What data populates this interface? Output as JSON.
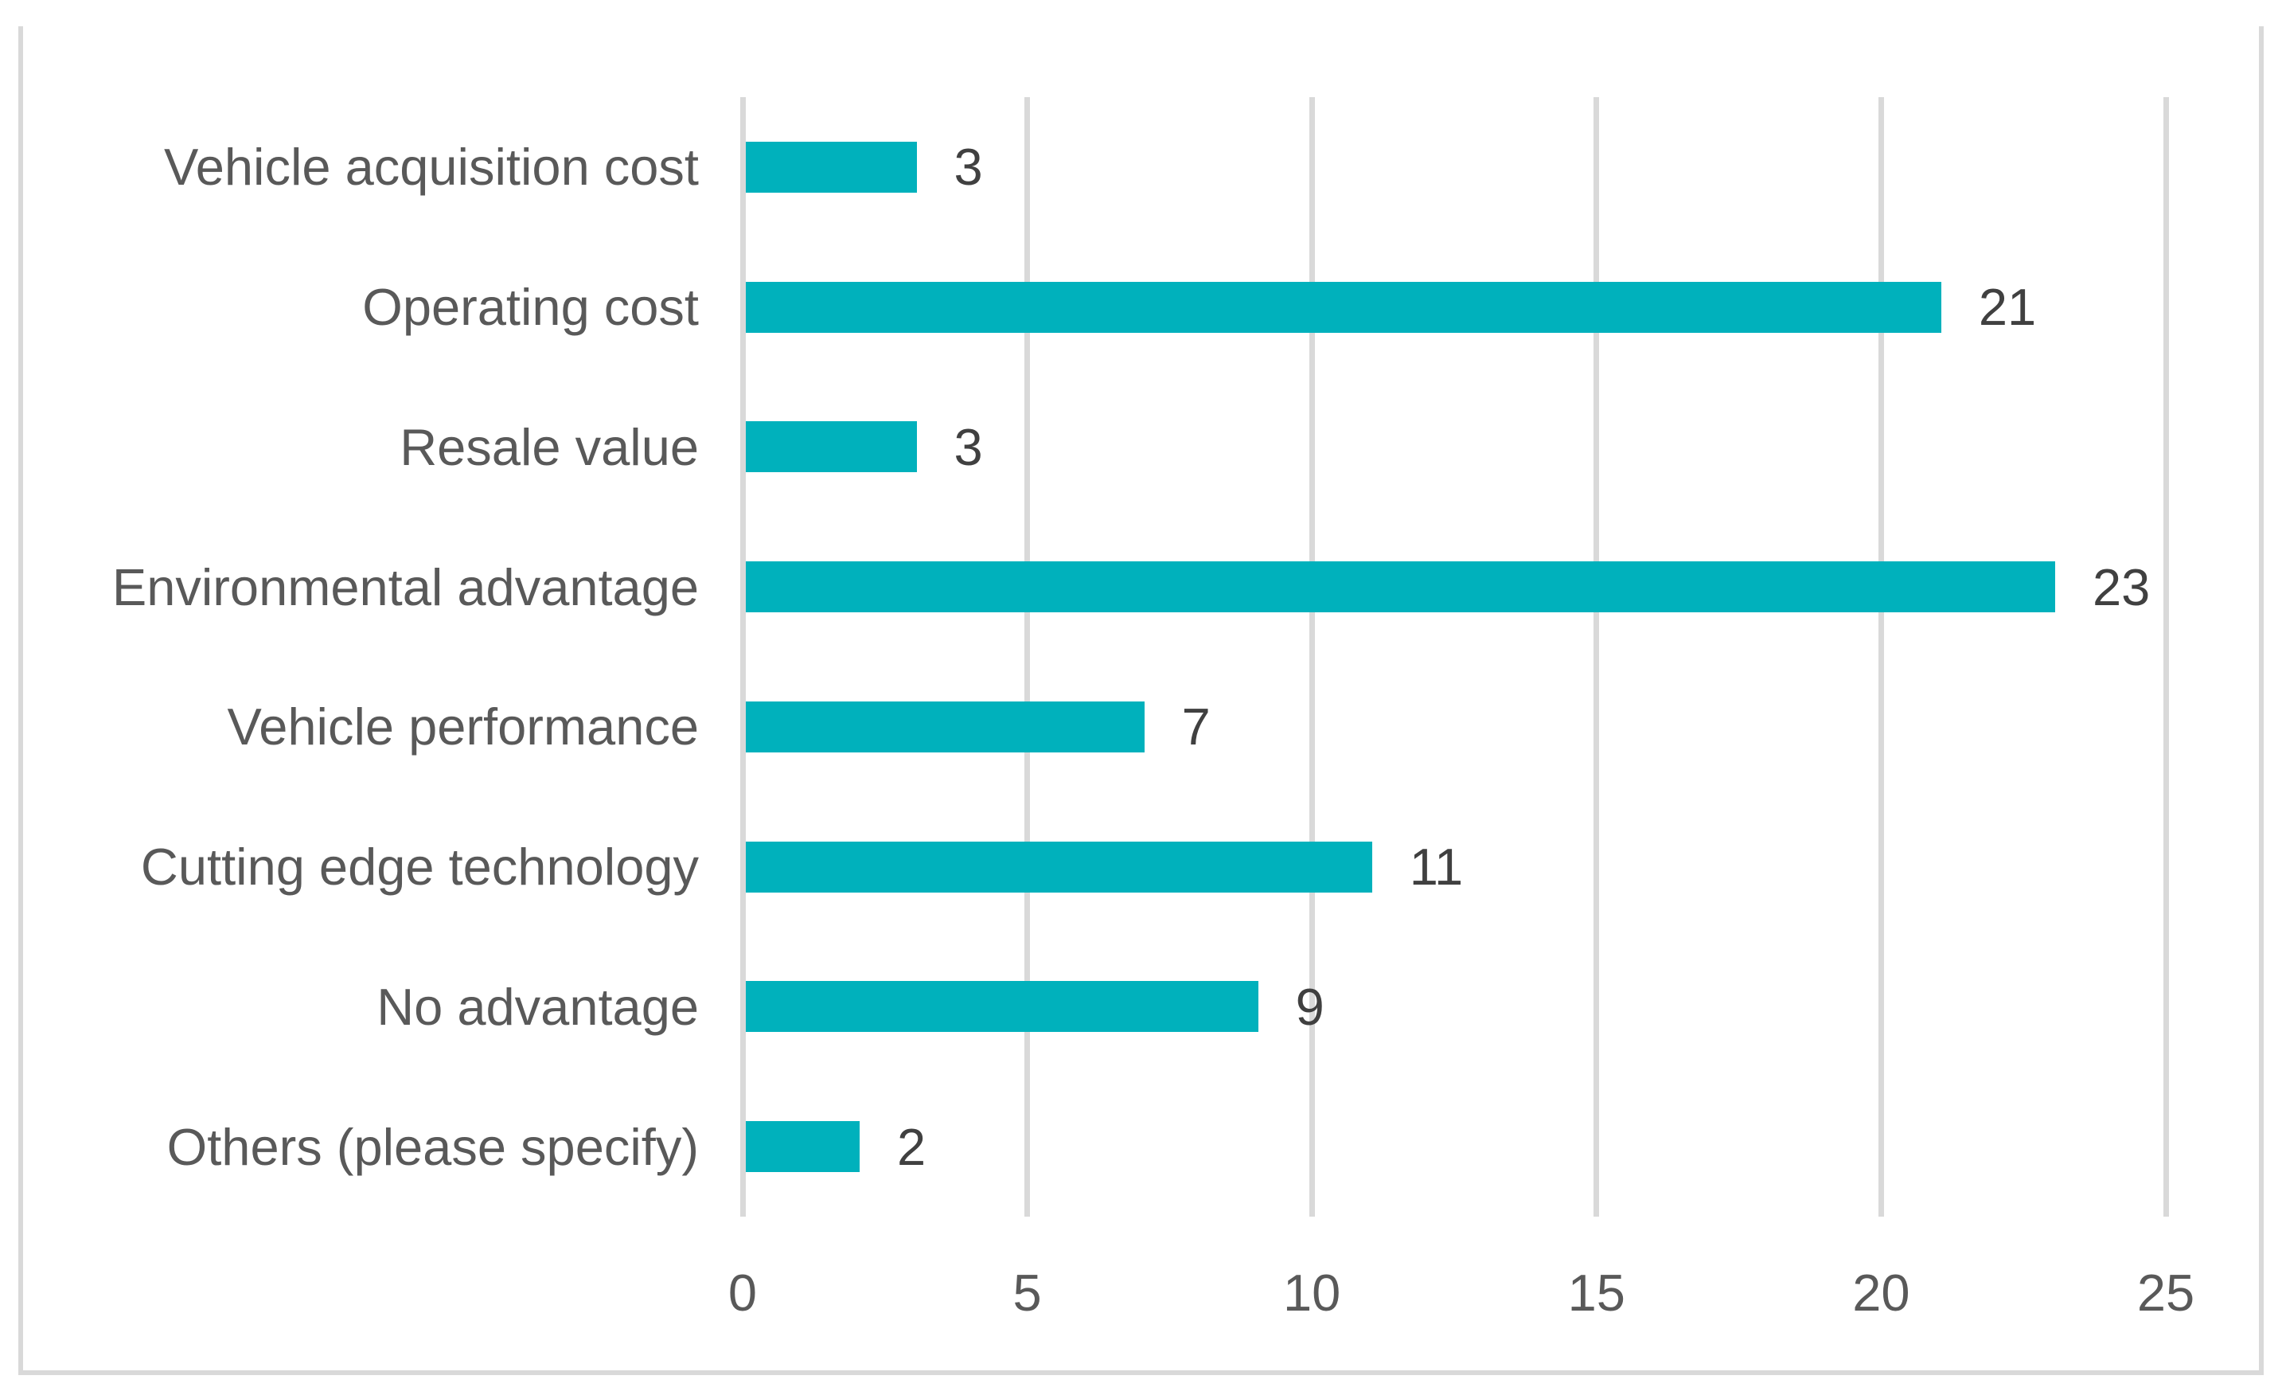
{
  "chart_data": {
    "type": "bar",
    "orientation": "horizontal",
    "title": "",
    "categories": [
      "Vehicle acquisition cost",
      "Operating cost",
      "Resale value",
      "Environmental advantage",
      "Vehicle performance",
      "Cutting edge technology",
      "No advantage",
      "Others (please specify)"
    ],
    "values": [
      3,
      21,
      3,
      23,
      7,
      11,
      9,
      2
    ],
    "value_labels": [
      "3",
      "21",
      "3",
      "23",
      "7",
      "11",
      "9",
      "2"
    ],
    "x_ticks": [
      "0",
      "5",
      "10",
      "15",
      "20",
      "25"
    ],
    "xlim": [
      0,
      25
    ],
    "x_tick_step": 5,
    "grid": true,
    "legend": false,
    "data_labels_shown": true,
    "colors": {
      "bar": "#00B1BC",
      "gridline": "#D9D9D9",
      "frame_border": "#D9D9D9",
      "category_text": "#595959",
      "tick_text": "#595959",
      "value_text": "#404040",
      "background": "#FFFFFF"
    }
  }
}
